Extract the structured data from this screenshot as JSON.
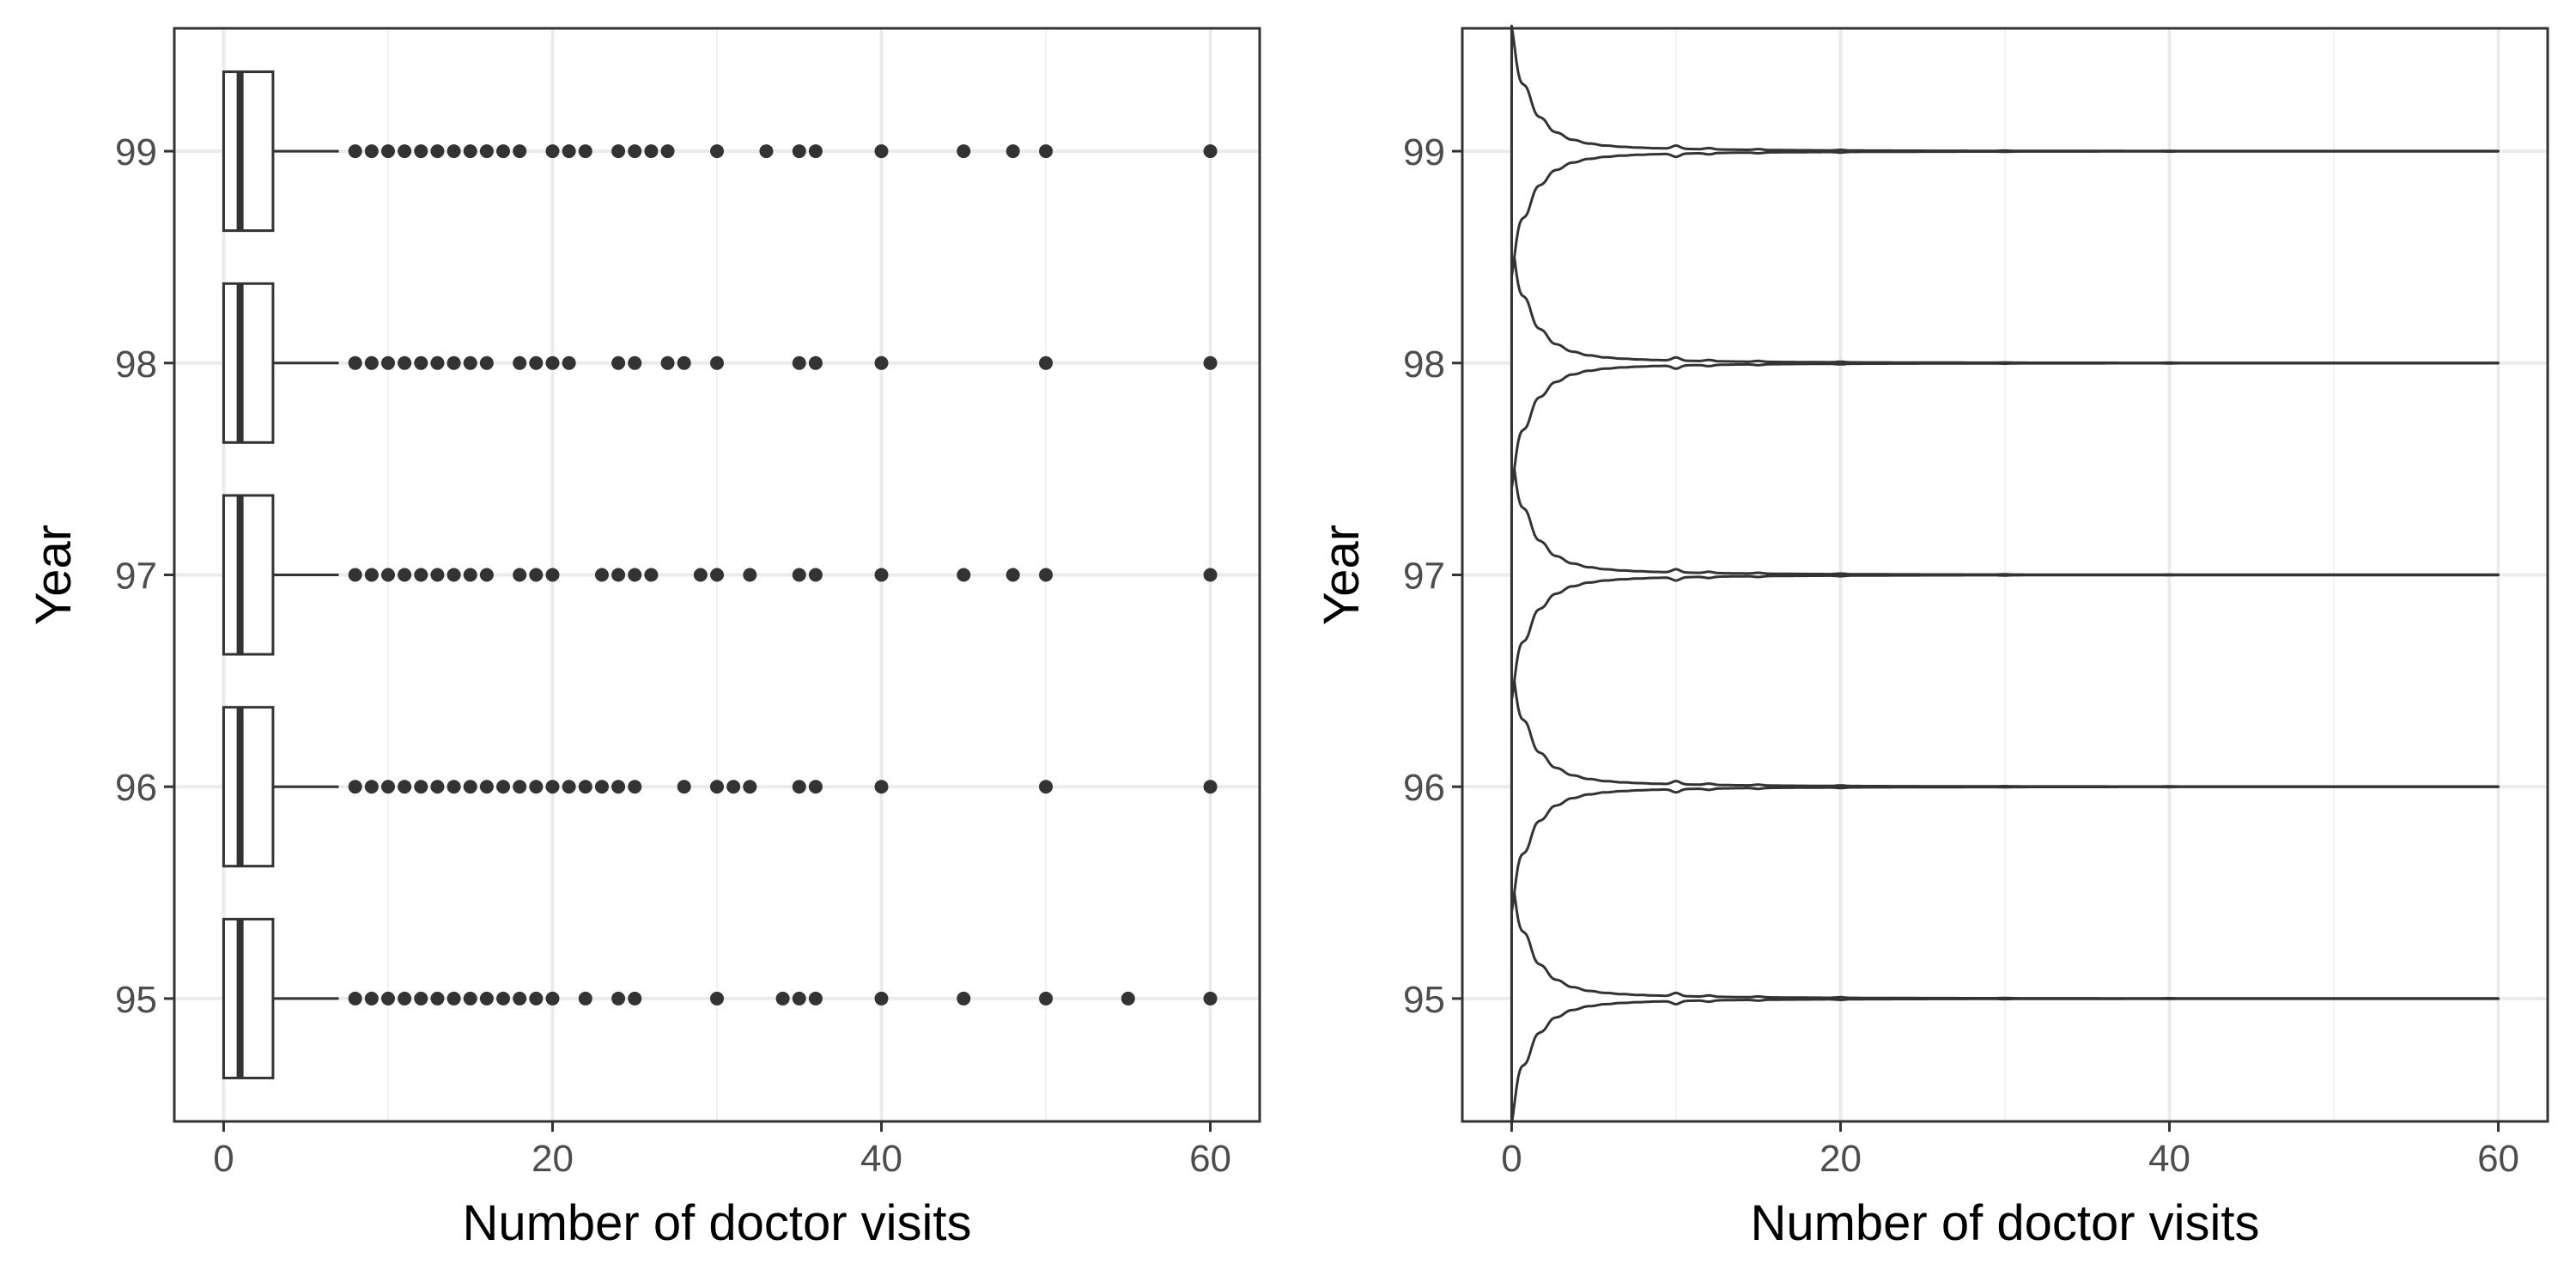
{
  "chart_data": [
    {
      "type": "boxplot",
      "orientation": "horizontal",
      "xlabel": "Number of doctor visits",
      "ylabel": "Year",
      "xlim": [
        -3,
        63
      ],
      "x_ticks": [
        0,
        20,
        40,
        60
      ],
      "categories": [
        "95",
        "96",
        "97",
        "98",
        "99"
      ],
      "grid": true,
      "series": [
        {
          "category": "95",
          "min": 0,
          "q1": 0,
          "median": 1,
          "q3": 3,
          "whisker_high": 7,
          "outliers": [
            8,
            9,
            10,
            11,
            12,
            13,
            14,
            15,
            16,
            17,
            18,
            19,
            20,
            22,
            24,
            25,
            30,
            34,
            35,
            36,
            40,
            45,
            50,
            55,
            60
          ]
        },
        {
          "category": "96",
          "min": 0,
          "q1": 0,
          "median": 1,
          "q3": 3,
          "whisker_high": 7,
          "outliers": [
            8,
            9,
            10,
            11,
            12,
            13,
            14,
            15,
            16,
            17,
            18,
            19,
            20,
            21,
            22,
            23,
            24,
            25,
            28,
            30,
            31,
            32,
            35,
            36,
            40,
            50,
            60
          ]
        },
        {
          "category": "97",
          "min": 0,
          "q1": 0,
          "median": 1,
          "q3": 3,
          "whisker_high": 7,
          "outliers": [
            8,
            9,
            10,
            11,
            12,
            13,
            14,
            15,
            16,
            18,
            19,
            20,
            23,
            24,
            25,
            26,
            29,
            30,
            32,
            35,
            36,
            40,
            45,
            48,
            50,
            60
          ]
        },
        {
          "category": "98",
          "min": 0,
          "q1": 0,
          "median": 1,
          "q3": 3,
          "whisker_high": 7,
          "outliers": [
            8,
            9,
            10,
            11,
            12,
            13,
            14,
            15,
            16,
            18,
            19,
            20,
            21,
            24,
            25,
            27,
            28,
            30,
            35,
            36,
            40,
            50,
            60
          ]
        },
        {
          "category": "99",
          "min": 0,
          "q1": 0,
          "median": 1,
          "q3": 3,
          "whisker_high": 7,
          "outliers": [
            8,
            9,
            10,
            11,
            12,
            13,
            14,
            15,
            16,
            17,
            18,
            20,
            21,
            22,
            24,
            25,
            26,
            27,
            30,
            33,
            35,
            36,
            40,
            45,
            48,
            50,
            60
          ]
        }
      ]
    },
    {
      "type": "violin",
      "orientation": "horizontal",
      "xlabel": "Number of doctor visits",
      "ylabel": "Year",
      "xlim": [
        -3,
        63
      ],
      "x_ticks": [
        0,
        20,
        40,
        60
      ],
      "categories": [
        "95",
        "96",
        "97",
        "98",
        "99"
      ],
      "grid": true,
      "range": [
        0,
        60
      ],
      "density_shape": "discrete-count, peak at 0 decaying rapidly, small bumps at 10, 12, 15, 20, near-flat to 60"
    }
  ]
}
